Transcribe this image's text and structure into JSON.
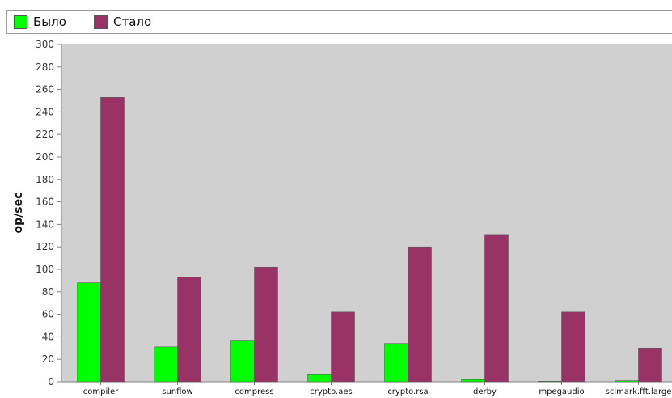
{
  "chart_data": {
    "type": "bar",
    "title": "",
    "xlabel": "",
    "ylabel": "op/sec",
    "ylim": [
      0,
      300
    ],
    "yticks": [
      0,
      20,
      40,
      60,
      80,
      100,
      120,
      140,
      160,
      180,
      200,
      220,
      240,
      260,
      280,
      300
    ],
    "grid": false,
    "legend_position": "top",
    "categories": [
      "compiler",
      "sunflow",
      "compress",
      "crypto.aes",
      "crypto.rsa",
      "derby",
      "mpegaudio",
      "scimark.fft.large"
    ],
    "series": [
      {
        "name": "Было",
        "color": "#00ff00",
        "values": [
          88,
          31,
          37,
          7,
          34,
          2,
          0.5,
          1
        ]
      },
      {
        "name": "Стало",
        "color": "#993366",
        "values": [
          253,
          93,
          102,
          62,
          120,
          131,
          62,
          30
        ]
      }
    ]
  },
  "style": {
    "plot_background": "#d0d0d0",
    "axis_color": "#808080",
    "bar_outline": "#5a5a5a"
  }
}
